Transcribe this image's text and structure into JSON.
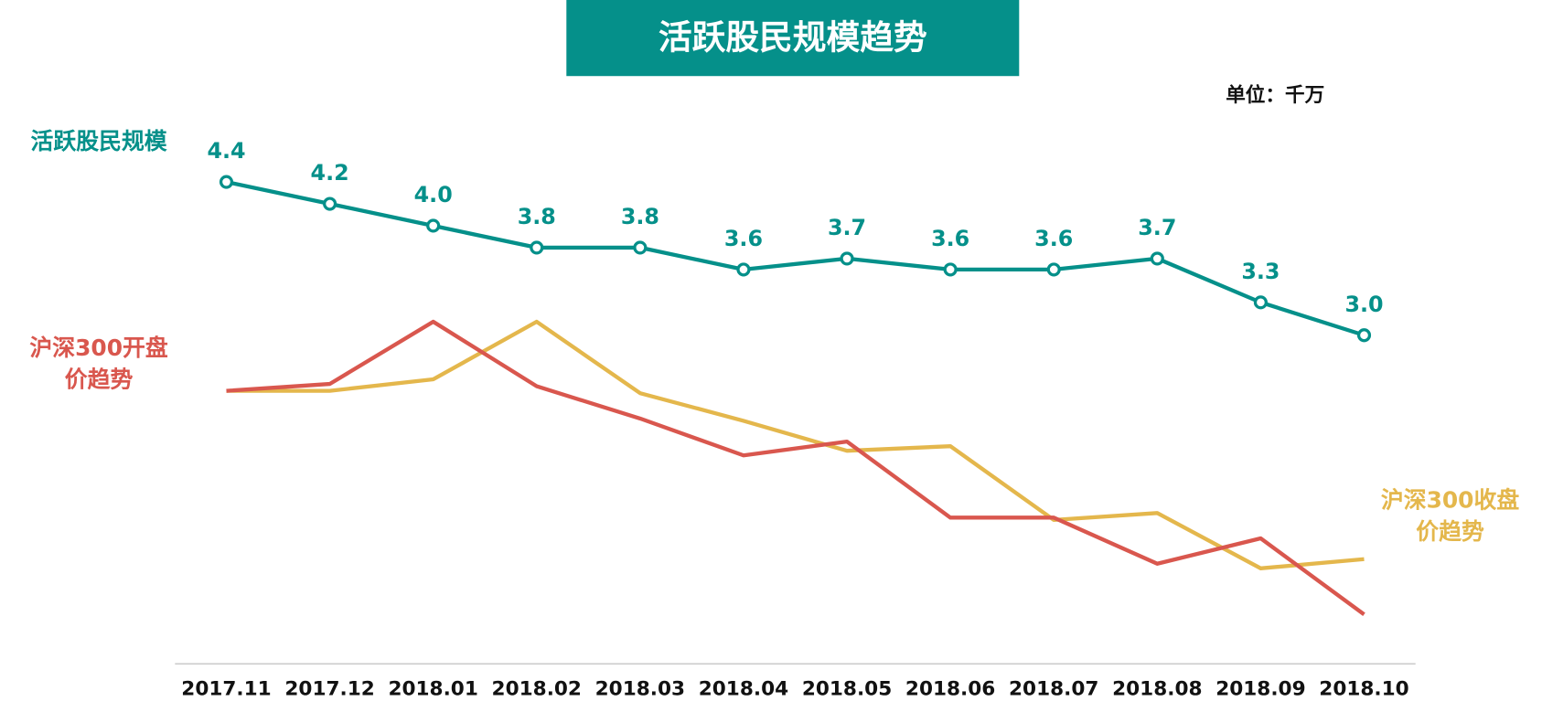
{
  "chart_data": {
    "type": "line",
    "title": "活跃股民规模趋势",
    "unit": "单位：千万",
    "categories": [
      "2017.11",
      "2017.12",
      "2018.01",
      "2018.02",
      "2018.03",
      "2018.04",
      "2018.05",
      "2018.06",
      "2018.07",
      "2018.08",
      "2018.09",
      "2018.10"
    ],
    "series": [
      {
        "name": "活跃股民规模",
        "color": "#05908a",
        "values": [
          4.4,
          4.2,
          4.0,
          3.8,
          3.8,
          3.6,
          3.7,
          3.6,
          3.6,
          3.7,
          3.3,
          3.0
        ],
        "value_labels": [
          "4.4",
          "4.2",
          "4.0",
          "3.8",
          "3.8",
          "3.6",
          "3.7",
          "3.6",
          "3.6",
          "3.7",
          "3.3",
          "3.0"
        ]
      },
      {
        "name": "沪深300开盘价趋势",
        "color": "#d9574e",
        "axis": "y2",
        "values": [
          4090,
          4120,
          4390,
          4110,
          3970,
          3810,
          3870,
          3540,
          3540,
          3340,
          3450,
          3120
        ]
      },
      {
        "name": "沪深300收盘价趋势",
        "color": "#e4b74c",
        "axis": "y2",
        "values": [
          4090,
          4090,
          4140,
          4390,
          4080,
          3960,
          3830,
          3850,
          3530,
          3560,
          3320,
          3360
        ]
      }
    ],
    "ylim": [
      2.2,
      4.6
    ],
    "y2lim": [
      3000,
      4500
    ]
  }
}
